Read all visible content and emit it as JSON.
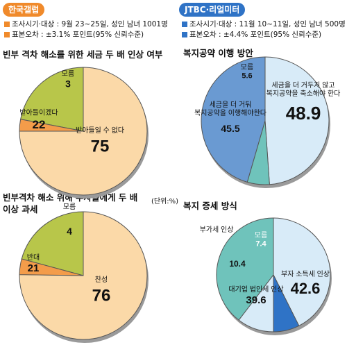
{
  "left_header": {
    "badge": "한국갤럽",
    "meta": [
      "조사시기·대상 : 9월 23~25일, 성인 남녀 1001명",
      "표본오차 : ±3.1% 포인트(95% 신뢰수준)"
    ]
  },
  "right_header": {
    "badge": "JTBC·리얼미터",
    "meta": [
      "조사시기·대상 : 11월 10~11일, 성인 남녀 500명",
      "표본오차 : ±4.4% 포인트(95% 신뢰수준)"
    ]
  },
  "unit_label": "(단위:%)",
  "chart_data": [
    {
      "type": "pie",
      "title": "빈부 격차 해소를 위한 세금 두 배 인상 여부",
      "categories": [
        "받아들일 수 없다",
        "받아들이겠다",
        "모름"
      ],
      "values": [
        75,
        22,
        3
      ],
      "colors": [
        "#fbd9a8",
        "#b8c64a",
        "#f39c4a"
      ]
    },
    {
      "type": "pie",
      "title": "복지공약 이행 방안",
      "categories": [
        "세금을 더 거두지 않고 복지공약을 축소해야 한다",
        "세금을 더 거둬 복지공약을 이행해야한다",
        "모름"
      ],
      "values": [
        48.9,
        45.5,
        5.6
      ],
      "colors": [
        "#d8ebf8",
        "#6a9ad2",
        "#6fc3bb"
      ]
    },
    {
      "type": "pie",
      "title": "빈부격차 해소 위해 부자들에게 두 배 이상 과세",
      "categories": [
        "찬성",
        "반대",
        "모름"
      ],
      "values": [
        76,
        21,
        4
      ],
      "colors": [
        "#fbd9a8",
        "#b8c64a",
        "#f39c4a"
      ]
    },
    {
      "type": "pie",
      "title": "복지 증세 방식",
      "categories": [
        "부자 소득세 인상",
        "대기업 법인세 인상",
        "부가세 인상",
        "모름"
      ],
      "values": [
        42.6,
        39.6,
        10.4,
        7.4
      ],
      "colors": [
        "#d8ebf8",
        "#6fc3bb",
        "#d8ebf8",
        "#2f73c6"
      ]
    }
  ]
}
